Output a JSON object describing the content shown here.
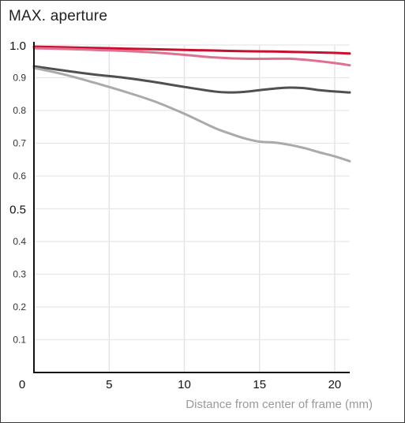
{
  "chart_data": {
    "type": "line",
    "title": "MAX. aperture",
    "xlabel": "Distance from center of frame (mm)",
    "ylabel": "",
    "xlim": [
      0,
      21
    ],
    "ylim": [
      0,
      1.0
    ],
    "grid": true,
    "x_ticks": [
      "0",
      "5",
      "10",
      "15",
      "20"
    ],
    "y_ticks": [
      "0.1",
      "0.2",
      "0.3",
      "0.4",
      "0.5",
      "0.6",
      "0.7",
      "0.8",
      "0.9",
      "1.0"
    ],
    "y_major_ticks": [
      "0.5",
      "1.0"
    ],
    "series": [
      {
        "color": "#c8102e",
        "x": [
          0,
          2,
          4,
          6,
          8,
          10,
          12,
          14,
          16,
          18,
          20,
          21
        ],
        "y": [
          0.995,
          0.993,
          0.991,
          0.989,
          0.987,
          0.985,
          0.983,
          0.981,
          0.98,
          0.978,
          0.976,
          0.974
        ]
      },
      {
        "color": "#e07090",
        "x": [
          0,
          2,
          4,
          6,
          8,
          10,
          12,
          14,
          16,
          17,
          18,
          20,
          21
        ],
        "y": [
          0.99,
          0.988,
          0.985,
          0.982,
          0.977,
          0.97,
          0.962,
          0.958,
          0.958,
          0.958,
          0.955,
          0.945,
          0.938
        ]
      },
      {
        "color": "#505050",
        "x": [
          0,
          2,
          4,
          6,
          8,
          10,
          12,
          13,
          14,
          15,
          16,
          17,
          18,
          19,
          20,
          21
        ],
        "y": [
          0.935,
          0.922,
          0.91,
          0.9,
          0.887,
          0.872,
          0.858,
          0.855,
          0.857,
          0.862,
          0.867,
          0.87,
          0.868,
          0.862,
          0.858,
          0.855
        ]
      },
      {
        "color": "#aaaaaa",
        "x": [
          0,
          2,
          4,
          6,
          8,
          10,
          12,
          13,
          14,
          15,
          16,
          17,
          18,
          19,
          20,
          21
        ],
        "y": [
          0.93,
          0.91,
          0.885,
          0.858,
          0.828,
          0.79,
          0.747,
          0.73,
          0.715,
          0.705,
          0.702,
          0.695,
          0.685,
          0.672,
          0.66,
          0.645
        ]
      }
    ]
  }
}
